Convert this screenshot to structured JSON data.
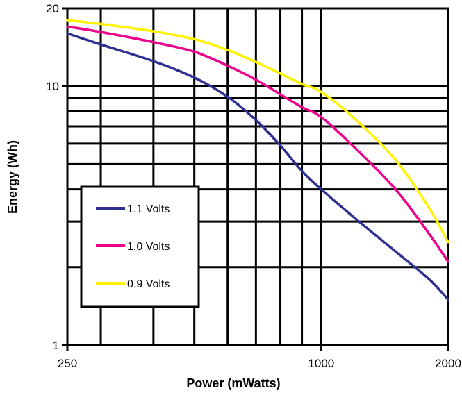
{
  "chart_data": {
    "type": "line",
    "title": "",
    "xlabel": "Power (mWatts)",
    "ylabel": "Energy (Wh)",
    "x_scale": "log",
    "y_scale": "log",
    "xlim": [
      250,
      2000
    ],
    "ylim": [
      1,
      20
    ],
    "x_ticks": [
      {
        "value": 250,
        "label": "250"
      },
      {
        "value": 1000,
        "label": "1000"
      },
      {
        "value": 2000,
        "label": "2000"
      }
    ],
    "y_ticks": [
      {
        "value": 1,
        "label": "1"
      },
      {
        "value": 10,
        "label": "10"
      },
      {
        "value": 20,
        "label": "20"
      }
    ],
    "x_gridlines": [
      300,
      400,
      500,
      600,
      700,
      800,
      900,
      1000
    ],
    "y_gridlines": [
      2,
      3,
      4,
      5,
      6,
      7,
      8,
      9,
      10
    ],
    "grid": true,
    "legend_position": "center-left",
    "series": [
      {
        "name": "1.1 Volts",
        "color": "#2E3192",
        "x": [
          250,
          300,
          400,
          500,
          600,
          700,
          800,
          900,
          1000,
          1200,
          1500,
          1800,
          2000
        ],
        "y": [
          16,
          14.5,
          12.5,
          10.8,
          9.1,
          7.4,
          5.9,
          4.7,
          4.0,
          3.1,
          2.3,
          1.8,
          1.5
        ]
      },
      {
        "name": "1.0 Volts",
        "color": "#EC008C",
        "x": [
          250,
          300,
          400,
          500,
          600,
          700,
          800,
          900,
          1000,
          1200,
          1500,
          1800,
          2000
        ],
        "y": [
          17,
          16.2,
          14.8,
          13.6,
          12.0,
          10.6,
          9.3,
          8.3,
          7.6,
          5.8,
          4.0,
          2.7,
          2.1
        ]
      },
      {
        "name": "0.9 Volts",
        "color": "#FFF200",
        "x": [
          250,
          300,
          400,
          500,
          600,
          700,
          800,
          900,
          1000,
          1200,
          1500,
          1800,
          2000
        ],
        "y": [
          18,
          17.4,
          16.3,
          15.2,
          13.8,
          12.4,
          11.2,
          10.2,
          9.5,
          7.5,
          5.2,
          3.4,
          2.5
        ]
      }
    ]
  }
}
